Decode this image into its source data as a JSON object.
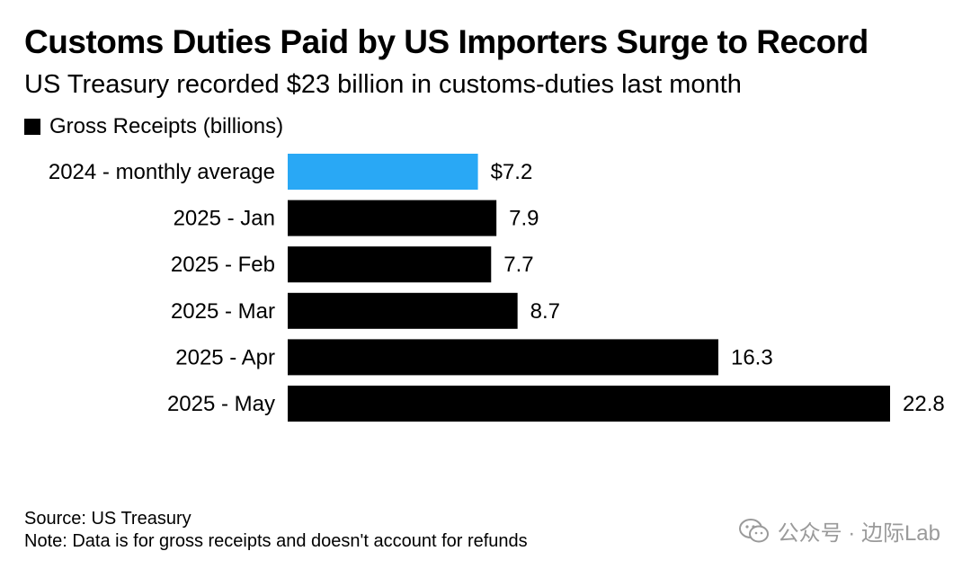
{
  "title": "Customs Duties Paid by US Importers Surge to Record",
  "subtitle": "US Treasury recorded $23 billion in customs-duties last month",
  "legend": {
    "label": "Gross Receipts (billions)",
    "color": "#000000"
  },
  "chart_data": {
    "type": "bar",
    "orientation": "horizontal",
    "title": "Customs Duties Paid by US Importers Surge to Record",
    "subtitle": "US Treasury recorded $23 billion in customs-duties last month",
    "categories": [
      "2024 - monthly average",
      "2025 - Jan",
      "2025 - Feb",
      "2025 - Mar",
      "2025 - Apr",
      "2025 - May"
    ],
    "series": [
      {
        "name": "Gross Receipts (billions)",
        "values": [
          7.2,
          7.9,
          7.7,
          8.7,
          16.3,
          22.8
        ]
      }
    ],
    "value_labels": [
      "$7.2",
      "7.9",
      "7.7",
      "8.7",
      "16.3",
      "22.8"
    ],
    "bar_colors": [
      "#29a8f5",
      "#000000",
      "#000000",
      "#000000",
      "#000000",
      "#000000"
    ],
    "xlim": [
      0,
      22.8
    ],
    "grid": false,
    "legend_position": "top-left"
  },
  "footer": {
    "source": "Source: US Treasury",
    "note": "Note: Data is for gross receipts and doesn't account for refunds"
  },
  "watermark": {
    "text": "公众号 · 边际Lab",
    "icon": "wechat-icon"
  }
}
